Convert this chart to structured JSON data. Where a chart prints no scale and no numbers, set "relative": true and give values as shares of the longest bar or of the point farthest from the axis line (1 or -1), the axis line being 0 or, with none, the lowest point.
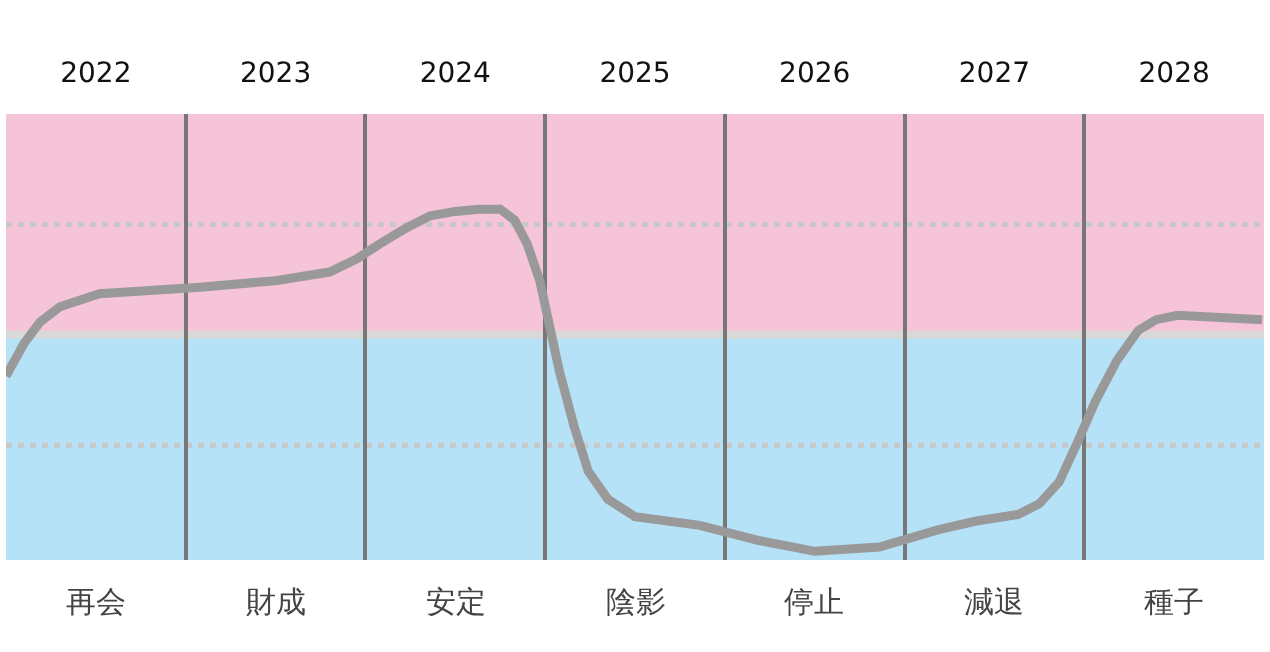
{
  "chart_data": {
    "type": "line",
    "relative": true,
    "annotations": [
      "再会",
      "財成",
      "安定",
      "陰影",
      "停止",
      "減退",
      "種子"
    ],
    "xlim": [
      2021.5,
      2028.5
    ],
    "xticks": [
      2022,
      2023,
      2024,
      2025,
      2026,
      2027,
      2028
    ],
    "grid": "x",
    "series": [
      {
        "color": "#999999",
        "x": [
          2021.5,
          2021.6,
          2021.69,
          2021.8,
          2022.02,
          2022.58,
          2023.0,
          2023.3,
          2023.45,
          2023.58,
          2023.72,
          2023.86,
          2024.0,
          2024.13,
          2024.25,
          2024.33,
          2024.4,
          2024.47,
          2024.58,
          2024.66,
          2024.74,
          2024.85,
          2025.0,
          2025.36,
          2025.69,
          2026.0,
          2026.36,
          2026.69,
          2026.9,
          2027.13,
          2027.25,
          2027.36,
          2027.46,
          2027.56,
          2027.68,
          2027.8,
          2027.9,
          2028.02,
          2028.49
        ],
        "values": [
          -0.19,
          -0.04,
          0.06,
          0.13,
          0.19,
          0.22,
          0.25,
          0.29,
          0.35,
          0.42,
          0.49,
          0.55,
          0.57,
          0.58,
          0.58,
          0.53,
          0.42,
          0.25,
          -0.17,
          -0.42,
          -0.63,
          -0.76,
          -0.84,
          -0.88,
          -0.95,
          -1.0,
          -0.98,
          -0.9,
          -0.86,
          -0.83,
          -0.78,
          -0.68,
          -0.5,
          -0.31,
          -0.12,
          0.02,
          0.07,
          0.09,
          0.07
        ]
      }
    ],
    "ref_lines": [
      {
        "axis": "y",
        "value": 0,
        "color": "#d9d9d9",
        "line_style": "solid"
      },
      {
        "axis": "y",
        "value": 0.51,
        "color": "#c8c8c8",
        "line_style": "dotted"
      },
      {
        "axis": "y",
        "value": -0.51,
        "color": "#c8c8c8",
        "line_style": "dotted"
      }
    ],
    "bands": [
      {
        "axis": "y",
        "from": 0,
        "to": 1.02,
        "color": "#f6c4d8"
      },
      {
        "axis": "y",
        "from": -1.04,
        "to": 0,
        "color": "#b6e2f8"
      }
    ]
  }
}
